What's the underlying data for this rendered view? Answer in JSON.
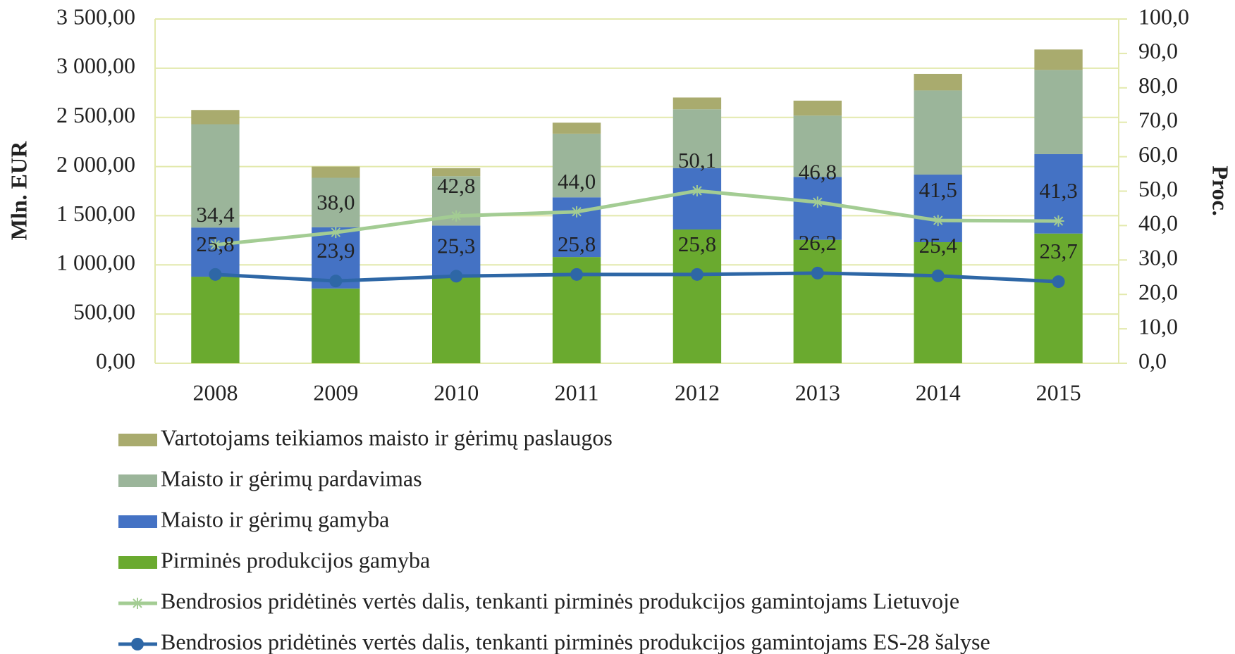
{
  "chart_data": {
    "type": "bar",
    "y_label": "Mln. EUR",
    "y2_label": "Proc.",
    "categories": [
      "2008",
      "2009",
      "2010",
      "2011",
      "2012",
      "2013",
      "2014",
      "2015"
    ],
    "ylim": [
      0,
      3500
    ],
    "yticks": [
      {
        "value": 0,
        "label": "0,00"
      },
      {
        "value": 500,
        "label": "500,00"
      },
      {
        "value": 1000,
        "label": "1 000,00"
      },
      {
        "value": 1500,
        "label": "1 500,00"
      },
      {
        "value": 2000,
        "label": "2 000,00"
      },
      {
        "value": 2500,
        "label": "2 500,00"
      },
      {
        "value": 3000,
        "label": "3 000,00"
      },
      {
        "value": 3500,
        "label": "3 500,00"
      }
    ],
    "y2lim": [
      0,
      100
    ],
    "y2ticks": [
      {
        "value": 0,
        "label": "0,0"
      },
      {
        "value": 10,
        "label": "10,0"
      },
      {
        "value": 20,
        "label": "20,0"
      },
      {
        "value": 30,
        "label": "30,0"
      },
      {
        "value": 40,
        "label": "40,0"
      },
      {
        "value": 50,
        "label": "50,0"
      },
      {
        "value": 60,
        "label": "60,0"
      },
      {
        "value": 70,
        "label": "70,0"
      },
      {
        "value": 80,
        "label": "80,0"
      },
      {
        "value": 90,
        "label": "90,0"
      },
      {
        "value": 100,
        "label": "100,0"
      }
    ],
    "grid": true,
    "series": [
      {
        "name": "Pirminės produkcijos gamyba",
        "color": "#6aaa2f",
        "values": [
          880,
          760,
          880,
          1080,
          1360,
          1255,
          1231,
          1319
        ]
      },
      {
        "name": "Maisto ir gėrimų gamyba",
        "color": "#4472c4",
        "values": [
          500,
          623,
          520,
          607,
          623,
          640,
          687,
          807
        ]
      },
      {
        "name": "Maisto ir gėrimų pardavimas",
        "color": "#9bb59a",
        "values": [
          1050,
          503,
          502,
          647,
          599,
          623,
          856,
          856
        ]
      },
      {
        "name": "Vartotojams teikiamos maisto ir gėrimų paslaugos",
        "color": "#a9ab6e",
        "values": [
          145,
          114,
          81,
          112,
          120,
          152,
          168,
          208
        ]
      },
      {
        "name": "Bendrosios pridėtinės vertės dalis, tenkanti pirminės produkcijos gamintojams Lietuvoje",
        "type": "line",
        "axis": "y2",
        "marker": "star",
        "color": "#a3cc93",
        "values": [
          34.4,
          38.0,
          42.8,
          44.0,
          50.1,
          46.8,
          41.5,
          41.3
        ],
        "value_labels": [
          "34,4",
          "38,0",
          "42,8",
          "44,0",
          "50,1",
          "46,8",
          "41,5",
          "41,3"
        ]
      },
      {
        "name": "Bendrosios pridėtinės vertės dalis, tenkanti pirminės produkcijos gamintojams ES-28 šalyse",
        "type": "line",
        "axis": "y2",
        "marker": "circle",
        "color": "#2e67a6",
        "values": [
          25.8,
          23.9,
          25.3,
          25.8,
          25.8,
          26.2,
          25.4,
          23.7
        ],
        "value_labels": [
          "25,8",
          "23,9",
          "25,3",
          "25,8",
          "25,8",
          "26,2",
          "25,4",
          "23,7"
        ]
      }
    ]
  }
}
